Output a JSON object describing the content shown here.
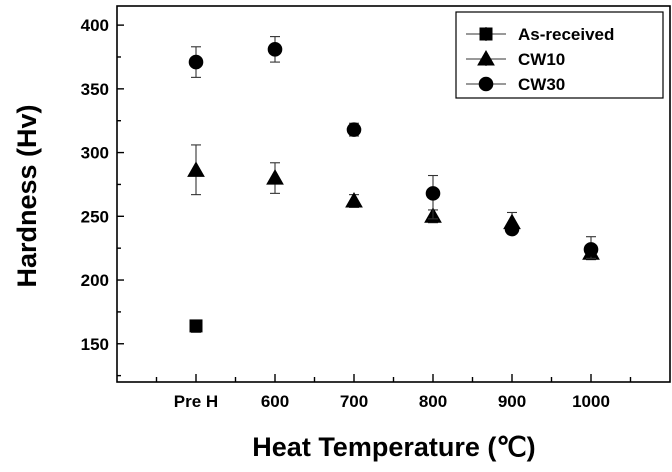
{
  "chart_data": {
    "type": "scatter",
    "xlabel": "Heat Temperature (℃)",
    "ylabel": "Hardness (Hv)",
    "categories": [
      "Pre H",
      "600",
      "700",
      "800",
      "900",
      "1000"
    ],
    "x_positions": [
      0.5,
      1.5,
      2.5,
      3.5,
      4.5,
      5.5
    ],
    "xlim": [
      -0.5,
      6.5
    ],
    "ylim": [
      120,
      415
    ],
    "yticks": [
      150,
      200,
      250,
      300,
      350,
      400
    ],
    "grid": false,
    "legend": "top-right",
    "series": [
      {
        "name": "As-received",
        "marker": "square",
        "points": [
          {
            "x": 0.5,
            "y": 164,
            "err_low": 5,
            "err_high": 3
          }
        ]
      },
      {
        "name": "CW10",
        "marker": "triangle",
        "points": [
          {
            "x": 0.5,
            "y": 286,
            "err_low": 19,
            "err_high": 20
          },
          {
            "x": 1.5,
            "y": 280,
            "err_low": 12,
            "err_high": 12
          },
          {
            "x": 2.5,
            "y": 262,
            "err_low": 5,
            "err_high": 5
          },
          {
            "x": 3.5,
            "y": 250,
            "err_low": 5,
            "err_high": 5
          },
          {
            "x": 4.5,
            "y": 245,
            "err_low": 5,
            "err_high": 8
          },
          {
            "x": 5.5,
            "y": 221,
            "err_low": 5,
            "err_high": 5
          }
        ]
      },
      {
        "name": "CW30",
        "marker": "circle",
        "points": [
          {
            "x": 0.5,
            "y": 371,
            "err_low": 12,
            "err_high": 12
          },
          {
            "x": 1.5,
            "y": 381,
            "err_low": 10,
            "err_high": 10
          },
          {
            "x": 2.5,
            "y": 318,
            "err_low": 5,
            "err_high": 5
          },
          {
            "x": 3.5,
            "y": 268,
            "err_low": 20,
            "err_high": 14
          },
          {
            "x": 4.5,
            "y": 240,
            "err_low": 3,
            "err_high": 3
          },
          {
            "x": 5.5,
            "y": 224,
            "err_low": 7,
            "err_high": 10
          }
        ]
      }
    ]
  }
}
